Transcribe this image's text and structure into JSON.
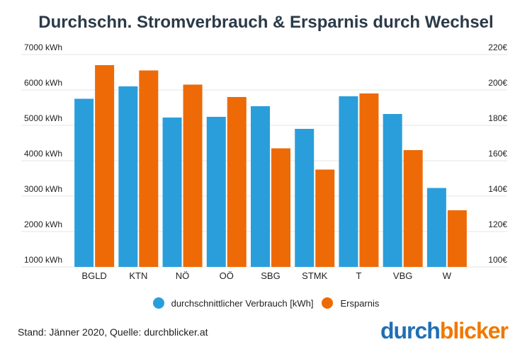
{
  "colors": {
    "consumption": "#2a9edb",
    "savings": "#ee6a06",
    "title": "#2b3a47",
    "grid": "#e4e4e4",
    "brand_blue": "#1f6fb4",
    "brand_orange": "#f07800"
  },
  "chart_data": {
    "type": "bar",
    "title": "Durchschn. Stromverbrauch & Ersparnis durch Wechsel",
    "categories": [
      "BGLD",
      "KTN",
      "NÖ",
      "OÖ",
      "SBG",
      "STMK",
      "T",
      "VBG",
      "W"
    ],
    "series": [
      {
        "name": "durchschnittlicher Verbrauch [kWh]",
        "axis": "left",
        "values": [
          5750,
          6100,
          5220,
          5240,
          5540,
          4900,
          5820,
          5320,
          3230
        ]
      },
      {
        "name": "Ersparnis",
        "axis": "right",
        "values": [
          214,
          211,
          203,
          196,
          167,
          155,
          198,
          166,
          132
        ]
      }
    ],
    "left_axis": {
      "ylim": [
        1000,
        7000
      ],
      "ticks": [
        "1000 kWh",
        "2000 kWh",
        "3000 kWh",
        "4000 kWh",
        "5000 kWh",
        "6000 kWh",
        "7000 kWh"
      ]
    },
    "right_axis": {
      "ylim": [
        100,
        220
      ],
      "ticks": [
        "100€",
        "120€",
        "140€",
        "160€",
        "180€",
        "200€",
        "220€"
      ]
    },
    "legend_position": "bottom-center",
    "grid": true
  },
  "legend": {
    "consumption_label": "durchschnittlicher Verbrauch [kWh]",
    "savings_label": "Ersparnis"
  },
  "footer": {
    "source": "Stand: Jänner 2020, Quelle: durchblicker.at"
  },
  "brand": {
    "part1": "durch",
    "part2": "blicker"
  }
}
